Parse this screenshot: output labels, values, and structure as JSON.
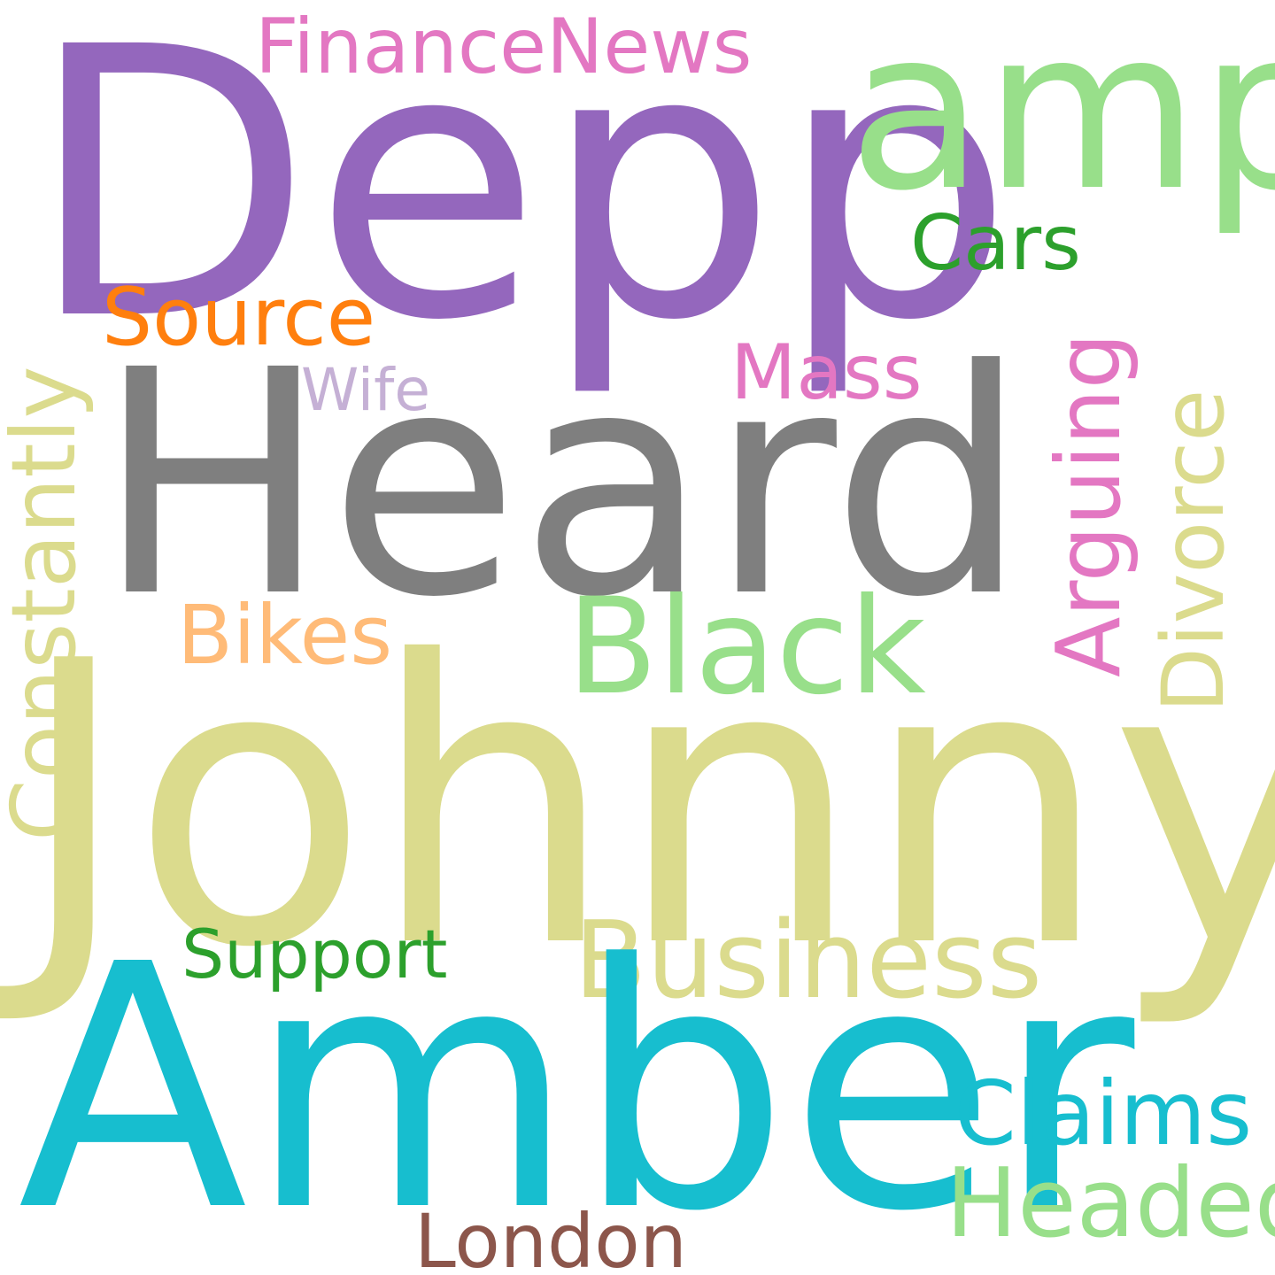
{
  "words": {
    "depp": {
      "text": "Depp",
      "color": "#9467bd"
    },
    "heard": {
      "text": "Heard",
      "color": "#7f7f7f"
    },
    "johnny": {
      "text": "Johnny",
      "color": "#dbdb8d"
    },
    "amber": {
      "text": "Amber",
      "color": "#17becf"
    },
    "amp": {
      "text": "amp",
      "color": "#98df8a"
    },
    "financenews": {
      "text": "FinanceNews",
      "color": "#e377c2"
    },
    "cars": {
      "text": "Cars",
      "color": "#2ca02c"
    },
    "source": {
      "text": "Source",
      "color": "#ff7f0e"
    },
    "mass": {
      "text": "Mass",
      "color": "#e377c2"
    },
    "wife": {
      "text": "Wife",
      "color": "#c5b0d5"
    },
    "constantly": {
      "text": "Constantly",
      "color": "#dbdb8d"
    },
    "arguing": {
      "text": "Arguing",
      "color": "#e377c2"
    },
    "divorce": {
      "text": "Divorce",
      "color": "#dbdb8d"
    },
    "bikes": {
      "text": "Bikes",
      "color": "#ffbb78"
    },
    "black": {
      "text": "Black",
      "color": "#98df8a"
    },
    "business": {
      "text": "Business",
      "color": "#dbdb8d"
    },
    "support": {
      "text": "Support",
      "color": "#2ca02c"
    },
    "claims": {
      "text": "Claims",
      "color": "#17becf"
    },
    "headed": {
      "text": "Headed",
      "color": "#98df8a"
    },
    "london": {
      "text": "London",
      "color": "#8c564b"
    }
  }
}
